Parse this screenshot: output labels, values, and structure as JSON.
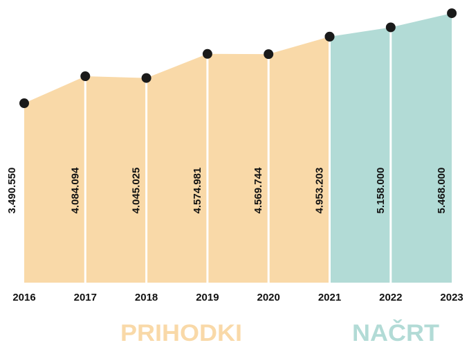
{
  "chart_data": {
    "type": "area",
    "categories": [
      "2016",
      "2017",
      "2018",
      "2019",
      "2020",
      "2021",
      "2022",
      "2023"
    ],
    "series": [
      {
        "name": "PRIHODKI",
        "color": "#f9d9a8",
        "values": [
          3490550,
          4084094,
          4045025,
          4574981,
          4569744,
          4953203,
          null,
          null
        ],
        "value_labels": [
          "3.490.550",
          "4.084.094",
          "4.045.025",
          "4.574.981",
          "4.569.744",
          "4.953.203",
          null,
          null
        ]
      },
      {
        "name": "NAČRT",
        "color": "#b2dbd6",
        "values": [
          null,
          null,
          null,
          null,
          null,
          4953203,
          5158000,
          5468000
        ],
        "value_labels": [
          null,
          null,
          null,
          null,
          null,
          null,
          "5.158.000",
          "5.468.000"
        ]
      }
    ],
    "ylim": [
      -450000,
      5500000
    ]
  }
}
